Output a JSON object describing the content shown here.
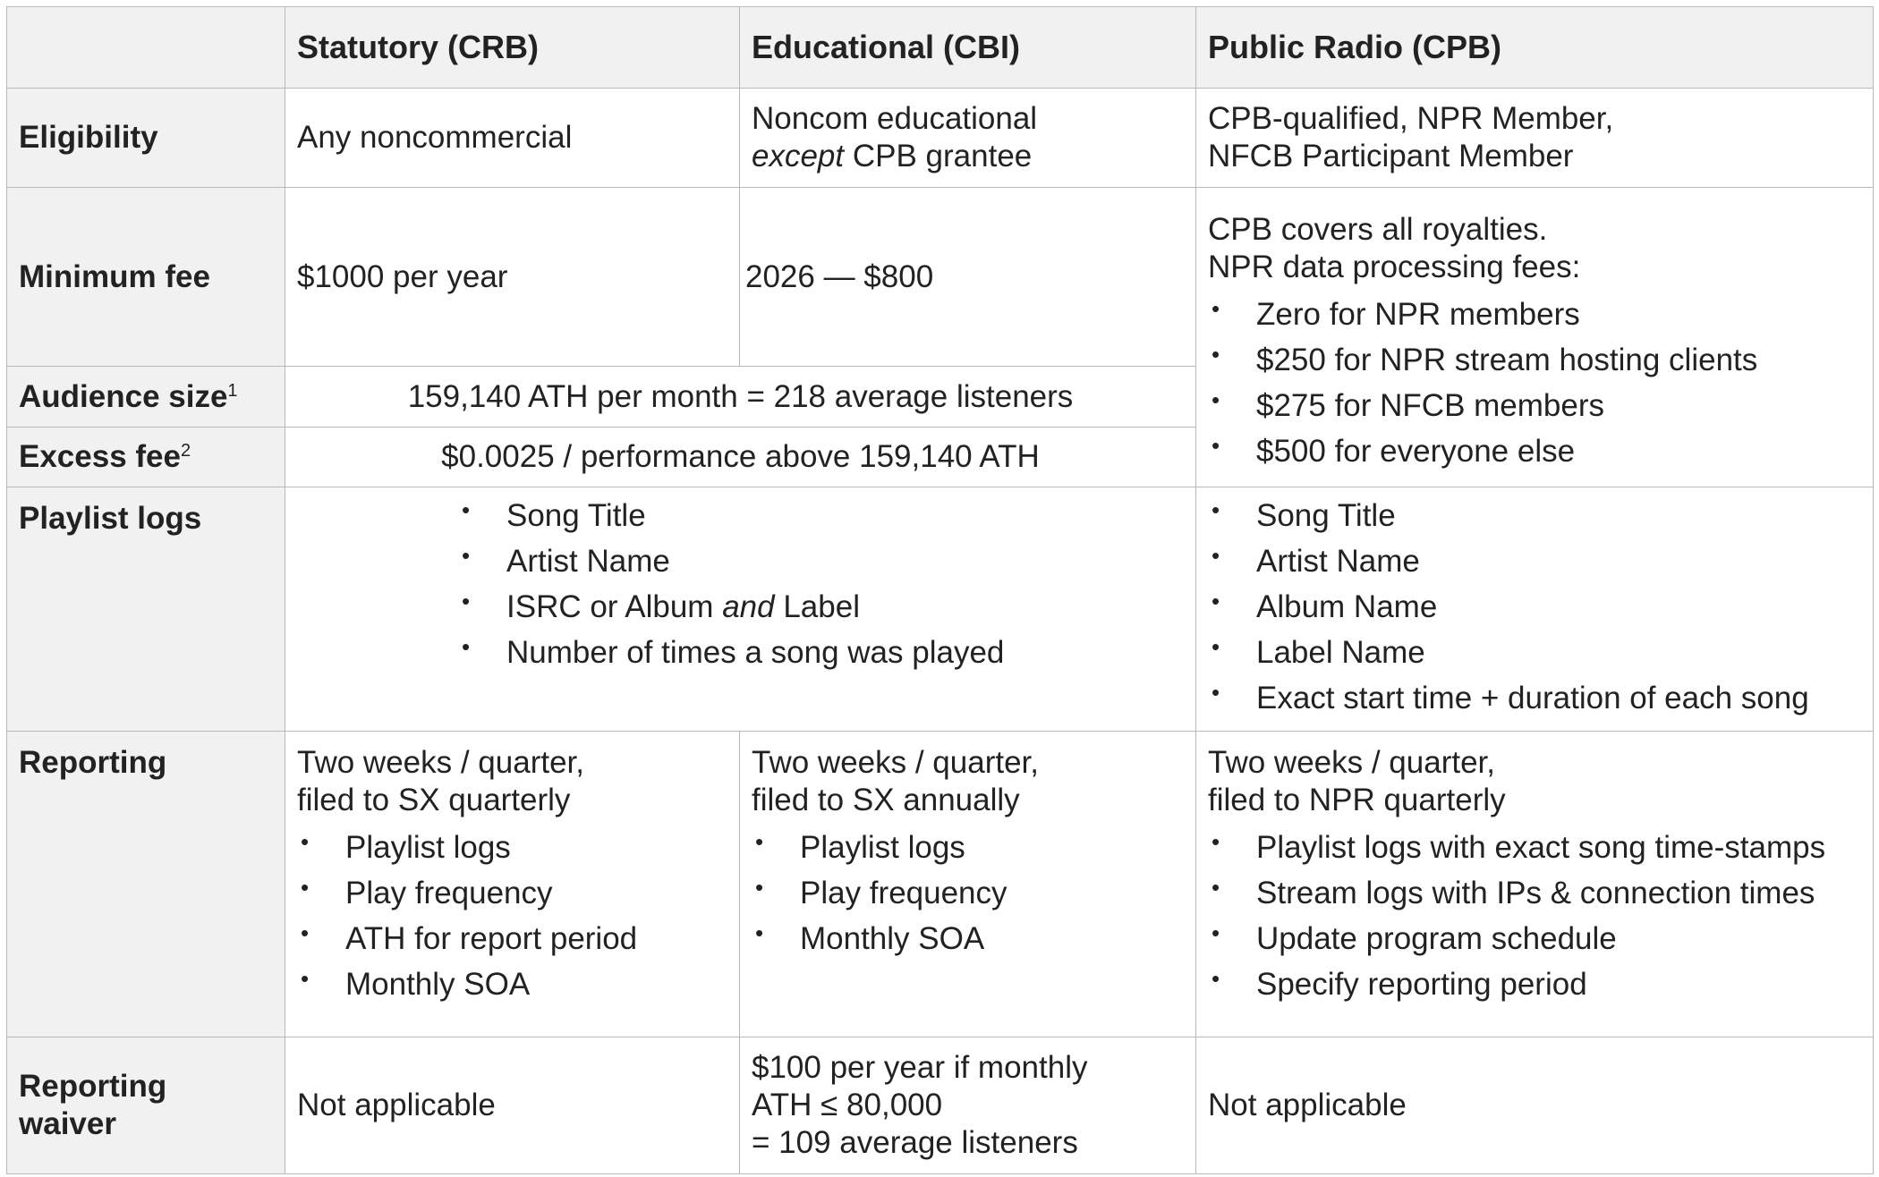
{
  "table": {
    "columns": [
      "Statutory (CRB)",
      "Educational (CBI)",
      "Public Radio (CPB)"
    ],
    "rows": [
      {
        "label": "Eligibility",
        "crb": "Any noncommercial",
        "cbi": [
          [
            "Noncom educational"
          ],
          [
            "except",
            "CPB grantee"
          ]
        ],
        "cpb": [
          "CPB-qualified, NPR Member,",
          "NFCB Participant Member"
        ]
      },
      {
        "label": "Minimum fee",
        "crb": "$1000 per year",
        "cbi": "2026 — $800",
        "cpb": {
          "lines": [
            "CPB covers all royalties.",
            "NPR data processing fees:"
          ],
          "bullets": [
            "Zero for NPR members",
            "$250 for NPR stream hosting clients",
            "$275 for NFCB members",
            "$500 for everyone else"
          ]
        }
      },
      {
        "label": "Audience size",
        "note": "1",
        "shared": "159,140 ATH per month = 218 average listeners"
      },
      {
        "label": "Excess fee",
        "note": "2",
        "shared": "$0.0025 / performance above 159,140 ATH"
      },
      {
        "label": "Playlist logs",
        "shared": [
          [
            "Song Title"
          ],
          [
            "Artist Name"
          ],
          [
            "ISRC or Album",
            "and",
            "Label"
          ],
          [
            "Number of times a song was played"
          ]
        ],
        "cpb": [
          "Song Title",
          "Artist Name",
          "Album Name",
          "Label Name",
          "Exact start time + duration of each song"
        ]
      },
      {
        "label": "Reporting",
        "crb": {
          "lines": [
            "Two weeks / quarter,",
            "filed to SX quarterly"
          ],
          "bullets": [
            "Playlist logs",
            "Play frequency",
            "ATH for report period",
            "Monthly SOA"
          ]
        },
        "cbi": {
          "lines": [
            "Two weeks / quarter,",
            "filed to SX annually"
          ],
          "bullets": [
            "Playlist logs",
            "Play frequency",
            "Monthly SOA"
          ]
        },
        "cpb": {
          "lines": [
            "Two weeks / quarter,",
            "filed to NPR quarterly"
          ],
          "bullets": [
            "Playlist logs with exact song time-stamps",
            "Stream logs with IPs & connection times",
            "Update program schedule",
            "Specify reporting period"
          ]
        }
      },
      {
        "label": "Reporting waiver",
        "crb": "Not applicable",
        "cbi": [
          "$100 per year if monthly",
          "ATH ≤ 80,000",
          "= 109 average listeners"
        ],
        "cpb": "Not applicable"
      }
    ]
  }
}
